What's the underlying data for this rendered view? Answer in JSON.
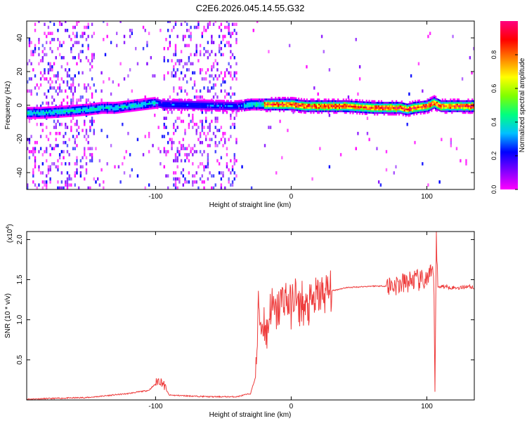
{
  "title": "C2E6.2026.045.14.55.G32",
  "colorbar": {
    "label": "Normalized spectral amplitude",
    "ticks": [
      "0.0",
      "0.2",
      "0.4",
      "0.6",
      "0.8"
    ],
    "colors": [
      "#ff00ff",
      "#8000ff",
      "#0000ff",
      "#00c0ff",
      "#00ff80",
      "#80ff00",
      "#ffff00",
      "#ff8000",
      "#ff0000",
      "#ff0080"
    ]
  },
  "chart_data": [
    {
      "type": "heatmap",
      "xlabel": "Height of straight line (km)",
      "ylabel": "Frequency (Hz)",
      "xlim": [
        -195,
        135
      ],
      "ylim": [
        -50,
        50
      ],
      "xticks": [
        -100,
        0,
        100
      ],
      "xtick_labels": [
        "-100",
        "0",
        "100"
      ],
      "yticks": [
        -40,
        -20,
        0,
        20,
        40
      ],
      "ytick_labels": [
        "-40",
        "-20",
        "0",
        "20",
        "40"
      ],
      "ridge": {
        "x": [
          -185,
          -165,
          -150,
          -140,
          -130,
          -120,
          -110,
          -100,
          -95,
          -40,
          -30,
          -20,
          -10,
          0,
          10,
          20,
          40,
          60,
          80,
          85,
          90,
          100,
          105,
          110,
          135
        ],
        "y": [
          -5,
          -4,
          -3,
          -2,
          -2,
          -1,
          0,
          1,
          0,
          -1,
          0,
          0,
          0,
          0,
          -1,
          -1,
          -1,
          -2,
          -2,
          -3,
          -2,
          -1,
          1,
          -1,
          -1
        ]
      }
    },
    {
      "type": "line",
      "xlabel": "Height of straight line (km)",
      "ylabel": "SNR (10 * v/v)",
      "y_multiplier": "(x10",
      "y_multiplier_exp": "4",
      "y_multiplier_close": ")",
      "xlim": [
        -195,
        135
      ],
      "ylim": [
        0,
        2.1
      ],
      "xticks": [
        -100,
        0,
        100
      ],
      "xtick_labels": [
        "-100",
        "0",
        "100"
      ],
      "yticks": [
        0.5,
        1.0,
        1.5,
        2.0
      ],
      "ytick_labels": [
        "0.5",
        "1.0",
        "1.5",
        "2.0"
      ],
      "color": "#ee3b3b",
      "series": [
        {
          "x": [
            -195,
            -150,
            -120,
            -105,
            -100,
            -98,
            -95,
            -90,
            -60,
            -40,
            -30,
            -26,
            -24,
            -22,
            -20,
            -18,
            -15,
            -12,
            -10,
            -8,
            -5,
            0,
            3,
            5,
            8,
            10,
            15,
            20,
            30,
            40,
            50,
            60,
            70,
            80,
            85,
            90,
            95,
            100,
            103,
            105,
            106,
            107,
            108,
            110,
            115,
            120,
            125,
            130,
            135
          ],
          "y": [
            0.01,
            0.03,
            0.08,
            0.12,
            0.2,
            0.25,
            0.22,
            0.06,
            0.04,
            0.04,
            0.08,
            0.3,
            1.2,
            0.9,
            1.0,
            0.8,
            1.2,
            1.05,
            1.1,
            1.2,
            1.3,
            1.15,
            1.35,
            1.1,
            1.25,
            1.1,
            1.2,
            1.3,
            1.36,
            1.4,
            1.41,
            1.42,
            1.42,
            1.44,
            1.46,
            1.5,
            1.48,
            1.5,
            1.55,
            1.6,
            0.2,
            2.1,
            1.4,
            1.42,
            1.41,
            1.4,
            1.4,
            1.42,
            1.4
          ]
        }
      ]
    }
  ]
}
